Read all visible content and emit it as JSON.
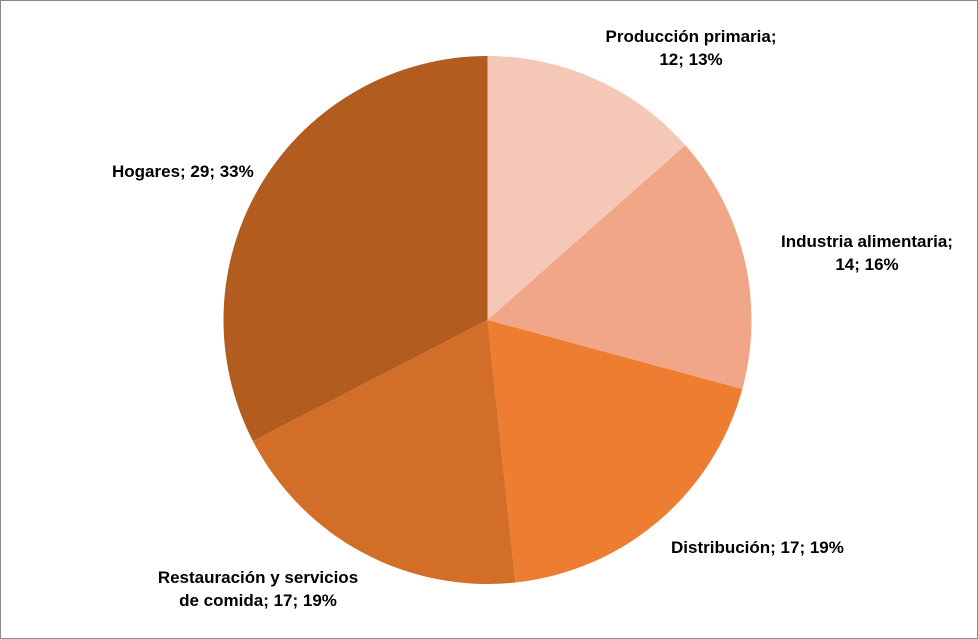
{
  "chart_data": {
    "type": "pie",
    "title": "",
    "categories": [
      "Producción primaria",
      "Industria alimentaria",
      "Distribución",
      "Restauración y servicios de comida",
      "Hogares"
    ],
    "values": [
      12,
      14,
      17,
      17,
      29
    ],
    "percent_labels": [
      "13%",
      "16%",
      "19%",
      "19%",
      "33%"
    ],
    "colors": [
      "#F5C7B6",
      "#F1A687",
      "#ED7D31",
      "#D26E28",
      "#B35C20"
    ],
    "start_angle_deg": 0,
    "direction": "clockwise",
    "legend_position": "none",
    "grid": false,
    "data_labels": {
      "produccion": "Producción primaria;\n12; 13%",
      "industria": "Industria alimentaria;\n14; 16%",
      "distribucion": "Distribución; 17; 19%",
      "restauracion": "Restauración y servicios\nde comida; 17; 19%",
      "hogares": "Hogares; 29; 33%"
    }
  }
}
